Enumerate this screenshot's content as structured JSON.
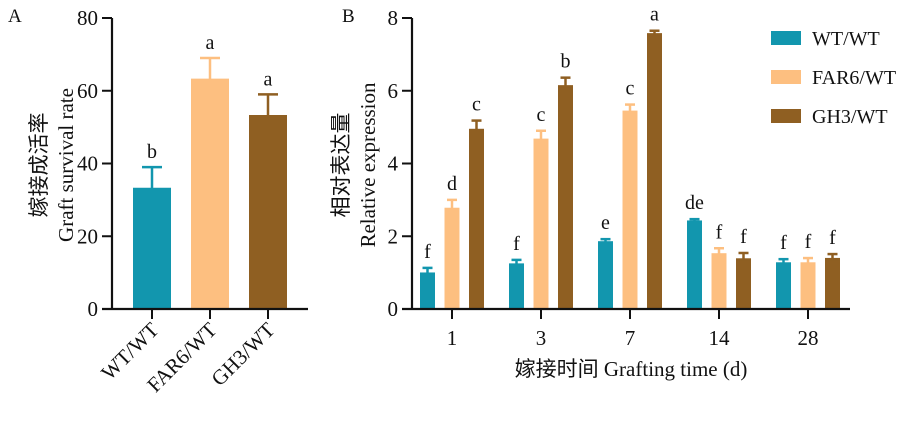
{
  "colors": {
    "WT/WT": "#1296AE",
    "FAR6/WT": "#FDBF80",
    "GH3/WT": "#8F5F22",
    "axis": "#111111"
  },
  "chart_data": [
    {
      "panel": "A",
      "type": "bar",
      "title": "",
      "ylabel_cn": "嫁接成活率",
      "ylabel": "Graft survival rate",
      "xlabel": "",
      "ylim": [
        0,
        80
      ],
      "yticks": [
        0,
        20,
        40,
        60,
        80
      ],
      "categories": [
        "WT/WT",
        "FAR6/WT",
        "GH3/WT"
      ],
      "values": [
        33,
        63,
        53
      ],
      "errors": [
        6,
        6,
        6
      ],
      "significance": [
        "b",
        "a",
        "a"
      ],
      "grid": false
    },
    {
      "panel": "B",
      "type": "bar",
      "title": "",
      "ylabel_cn": "相对表达量",
      "ylabel": "Relative expression",
      "xlabel": "嫁接时间 Grafting time (d)",
      "ylim": [
        0,
        8
      ],
      "yticks": [
        0,
        2,
        4,
        6,
        8
      ],
      "categories": [
        "1",
        "3",
        "7",
        "14",
        "28"
      ],
      "legend_position": "top-right",
      "grid": false,
      "series": [
        {
          "name": "WT/WT",
          "values": [
            0.97,
            1.22,
            1.83,
            2.4,
            1.25
          ],
          "errors": [
            0.16,
            0.13,
            0.09,
            0.07,
            0.12
          ],
          "significance": [
            "f",
            "f",
            "e",
            "de",
            "f"
          ]
        },
        {
          "name": "FAR6/WT",
          "values": [
            2.75,
            4.65,
            5.42,
            1.5,
            1.25
          ],
          "errors": [
            0.25,
            0.25,
            0.2,
            0.17,
            0.15
          ],
          "significance": [
            "d",
            "c",
            "c",
            "f",
            "f"
          ]
        },
        {
          "name": "GH3/WT",
          "values": [
            4.92,
            6.12,
            7.55,
            1.36,
            1.37
          ],
          "errors": [
            0.26,
            0.24,
            0.1,
            0.18,
            0.14
          ],
          "significance": [
            "c",
            "b",
            "a",
            "f",
            "f"
          ]
        }
      ]
    }
  ]
}
